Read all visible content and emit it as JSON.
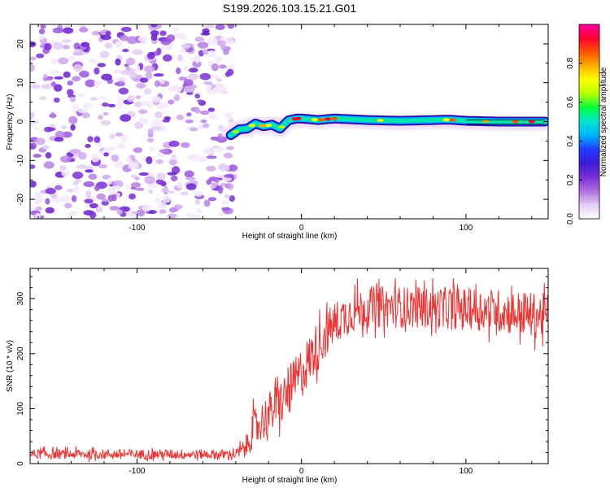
{
  "title": "S199.2026.103.15.21.G01",
  "chart_data": [
    {
      "type": "heatmap",
      "name": "spectrogram",
      "xlabel": "Height of straight line (km)",
      "ylabel": "Frequency (Hz)",
      "xlim": [
        -165,
        150
      ],
      "ylim": [
        -25,
        25
      ],
      "x_ticks": [
        "-100",
        "0",
        "100"
      ],
      "x_tick_values": [
        -100,
        0,
        100
      ],
      "y_ticks": [
        "-20",
        "-10",
        "0",
        "10",
        "20"
      ],
      "y_tick_values": [
        -20,
        -10,
        0,
        10,
        20
      ],
      "noise_region_x": [
        -165,
        -43
      ],
      "signal_trace": {
        "x": [
          -43,
          -38,
          -33,
          -28,
          -23,
          -18,
          -13,
          -8,
          -3,
          0,
          10,
          20,
          40,
          60,
          80,
          90,
          100,
          120,
          140,
          148
        ],
        "frequency": [
          -3.5,
          -2.0,
          -1.8,
          -0.5,
          -1.2,
          -0.8,
          -1.8,
          0.3,
          0.8,
          0.8,
          0.4,
          0.8,
          0.4,
          0.2,
          0.4,
          0.5,
          0.2,
          0.0,
          0.0,
          0.0
        ]
      },
      "colorbar": {
        "label": "Normalized spectral amplitude",
        "range": [
          0,
          1
        ],
        "ticks": [
          "0.0",
          "0.2",
          "0.4",
          "0.6",
          "0.8"
        ],
        "tick_values": [
          0.0,
          0.2,
          0.4,
          0.6,
          0.8
        ],
        "colors": [
          "#ffffff",
          "#e3cdf5",
          "#b06ee0",
          "#7a2fd6",
          "#3b1bd9",
          "#1e3cff",
          "#00b4ff",
          "#00e5d0",
          "#00ff3c",
          "#b4ff00",
          "#ffff00",
          "#ffb000",
          "#ff5500",
          "#ff0030",
          "#ff00a0"
        ]
      }
    },
    {
      "type": "line",
      "name": "snr",
      "xlabel": "Height of straight line (km)",
      "ylabel": "SNR (10 * v/v)",
      "xlim": [
        -165,
        150
      ],
      "ylim": [
        0,
        355
      ],
      "x_ticks": [
        "-100",
        "0",
        "100"
      ],
      "x_tick_values": [
        -100,
        0,
        100
      ],
      "y_ticks": [
        "0",
        "100",
        "200",
        "300"
      ],
      "y_tick_values": [
        0,
        100,
        200,
        300
      ],
      "line_color": "#ee3333",
      "envelope": {
        "x": [
          -165,
          -40,
          -34,
          -30,
          -20,
          -10,
          0,
          10,
          20,
          30,
          40,
          60,
          80,
          100,
          120,
          140,
          150
        ],
        "mean": [
          17,
          17,
          28,
          60,
          90,
          120,
          165,
          215,
          255,
          275,
          285,
          285,
          283,
          282,
          278,
          270,
          268
        ],
        "spread": [
          9,
          9,
          20,
          35,
          40,
          45,
          48,
          45,
          40,
          38,
          38,
          38,
          38,
          38,
          40,
          42,
          42
        ]
      }
    }
  ]
}
